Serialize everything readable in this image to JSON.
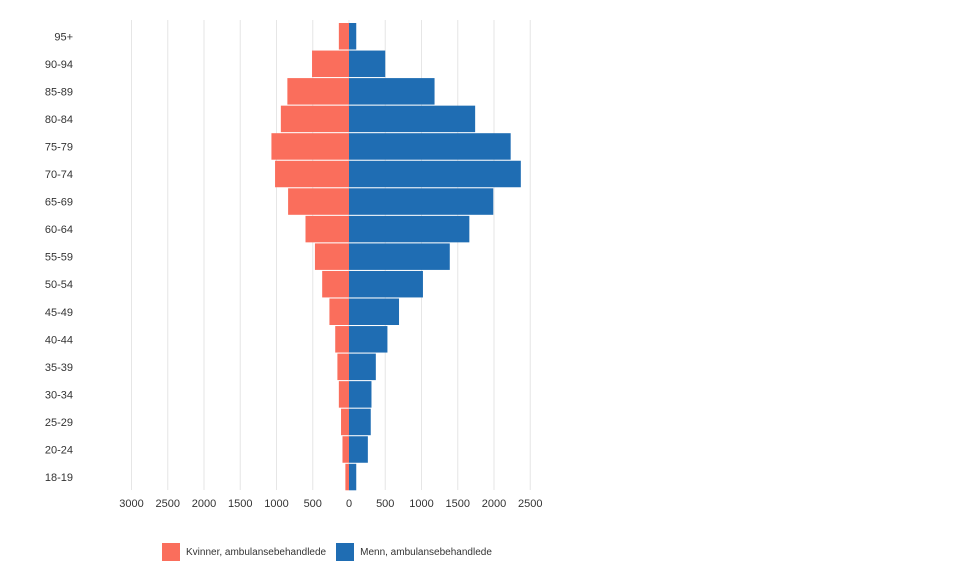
{
  "chart_data": {
    "type": "bar",
    "orientation": "horizontal-diverging",
    "categories": [
      "95+",
      "90-94",
      "85-89",
      "80-84",
      "75-79",
      "70-74",
      "65-69",
      "60-64",
      "55-59",
      "50-54",
      "45-49",
      "40-44",
      "35-39",
      "30-34",
      "25-29",
      "20-24",
      "18-19"
    ],
    "series": [
      {
        "name": "Kvinner, ambulansebehandlede",
        "color": "#fa6e5c",
        "side": "left",
        "values": [
          140,
          510,
          850,
          940,
          1070,
          1020,
          840,
          600,
          470,
          370,
          270,
          190,
          160,
          140,
          110,
          90,
          50
        ]
      },
      {
        "name": "Menn, ambulansebehandlede",
        "color": "#1f6db3",
        "side": "right",
        "values": [
          100,
          500,
          1180,
          1740,
          2230,
          2370,
          1990,
          1660,
          1390,
          1020,
          690,
          530,
          370,
          310,
          300,
          260,
          100
        ]
      }
    ],
    "x_ticks": [
      "3000",
      "2500",
      "2000",
      "1500",
      "1000",
      "500",
      "0",
      "500",
      "1000",
      "1500",
      "2000",
      "2500"
    ],
    "xlim": [
      -3000,
      2500
    ],
    "grid": true,
    "legend_position": "bottom-left"
  }
}
